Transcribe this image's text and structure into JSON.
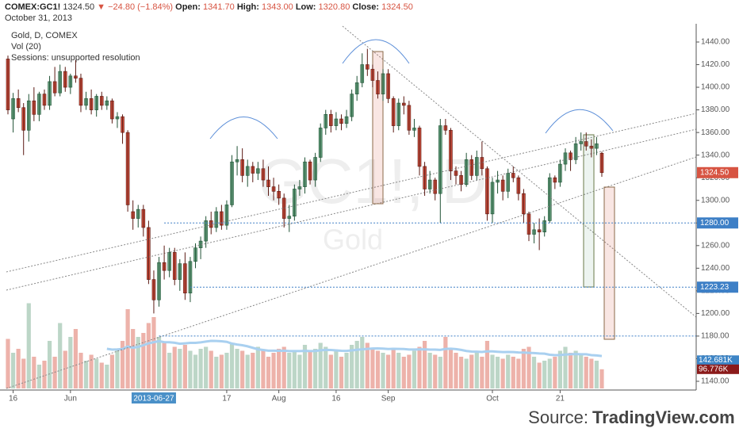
{
  "header": {
    "symbol": "COMEX:GC1!",
    "price": {
      "value": 1324.5,
      "label": "1324.50"
    },
    "arrow": "▼",
    "change": "−24.80 (−1.84%)",
    "fields": [
      {
        "name": "Open:",
        "value": {
          "value": 1341.7,
          "label": "1341.70"
        }
      },
      {
        "name": "High:",
        "value": {
          "value": 1343,
          "label": "1343.00"
        }
      },
      {
        "name": "Low:",
        "value": {
          "value": 1320.8,
          "label": "1320.80"
        }
      },
      {
        "name": "Close:",
        "value": {
          "value": 1324.5,
          "label": "1324.50"
        }
      }
    ],
    "date": "October 31, 2013"
  },
  "chart_data": {
    "type": "candlestick",
    "title": "Gold, D, COMEX",
    "indicator": "Vol (20)",
    "note": "Sessions: unsupported resolution",
    "watermark": "GC1!, D",
    "watermark_sub": "Gold",
    "up_color": "#6ba583",
    "down_color": "#d75442",
    "ma_color": "#a9d0f0",
    "ohlc": [
      [
        1425,
        1428,
        1376,
        1380
      ],
      [
        1372,
        1395,
        1360,
        1390
      ],
      [
        1390,
        1398,
        1378,
        1382
      ],
      [
        1382,
        1386,
        1340,
        1362
      ],
      [
        1362,
        1394,
        1352,
        1388
      ],
      [
        1388,
        1400,
        1370,
        1376
      ],
      [
        1376,
        1396,
        1370,
        1394
      ],
      [
        1394,
        1398,
        1380,
        1384
      ],
      [
        1384,
        1410,
        1380,
        1405
      ],
      [
        1405,
        1418,
        1392,
        1395
      ],
      [
        1395,
        1420,
        1392,
        1414
      ],
      [
        1414,
        1418,
        1396,
        1400
      ],
      [
        1400,
        1412,
        1394,
        1410
      ],
      [
        1410,
        1424,
        1404,
        1408
      ],
      [
        1408,
        1412,
        1378,
        1384
      ],
      [
        1384,
        1396,
        1380,
        1390
      ],
      [
        1390,
        1398,
        1376,
        1380
      ],
      [
        1380,
        1394,
        1374,
        1392
      ],
      [
        1392,
        1396,
        1380,
        1384
      ],
      [
        1384,
        1392,
        1380,
        1388
      ],
      [
        1388,
        1390,
        1368,
        1372
      ],
      [
        1372,
        1378,
        1364,
        1374
      ],
      [
        1374,
        1376,
        1350,
        1360
      ],
      [
        1360,
        1362,
        1290,
        1296
      ],
      [
        1290,
        1300,
        1274,
        1284
      ],
      [
        1284,
        1296,
        1276,
        1292
      ],
      [
        1292,
        1296,
        1268,
        1276
      ],
      [
        1276,
        1282,
        1226,
        1230
      ],
      [
        1230,
        1238,
        1200,
        1212
      ],
      [
        1212,
        1250,
        1206,
        1245
      ],
      [
        1245,
        1260,
        1230,
        1238
      ],
      [
        1238,
        1258,
        1232,
        1254
      ],
      [
        1254,
        1258,
        1225,
        1230
      ],
      [
        1230,
        1248,
        1220,
        1244
      ],
      [
        1244,
        1254,
        1212,
        1218
      ],
      [
        1218,
        1250,
        1210,
        1246
      ],
      [
        1246,
        1262,
        1240,
        1258
      ],
      [
        1258,
        1268,
        1248,
        1264
      ],
      [
        1264,
        1286,
        1258,
        1282
      ],
      [
        1282,
        1290,
        1270,
        1276
      ],
      [
        1276,
        1294,
        1272,
        1290
      ],
      [
        1290,
        1296,
        1274,
        1278
      ],
      [
        1278,
        1300,
        1274,
        1296
      ],
      [
        1296,
        1340,
        1294,
        1334
      ],
      [
        1334,
        1348,
        1322,
        1336
      ],
      [
        1336,
        1346,
        1316,
        1322
      ],
      [
        1322,
        1336,
        1312,
        1330
      ],
      [
        1330,
        1334,
        1316,
        1324
      ],
      [
        1324,
        1334,
        1318,
        1328
      ],
      [
        1328,
        1336,
        1312,
        1318
      ],
      [
        1318,
        1330,
        1304,
        1312
      ],
      [
        1312,
        1320,
        1300,
        1308
      ],
      [
        1308,
        1314,
        1296,
        1302
      ],
      [
        1302,
        1306,
        1276,
        1284
      ],
      [
        1284,
        1296,
        1272,
        1286
      ],
      [
        1286,
        1314,
        1282,
        1310
      ],
      [
        1310,
        1318,
        1304,
        1312
      ],
      [
        1312,
        1338,
        1306,
        1334
      ],
      [
        1334,
        1336,
        1314,
        1318
      ],
      [
        1318,
        1342,
        1312,
        1338
      ],
      [
        1338,
        1368,
        1334,
        1364
      ],
      [
        1364,
        1380,
        1358,
        1376
      ],
      [
        1376,
        1380,
        1360,
        1366
      ],
      [
        1366,
        1378,
        1362,
        1372
      ],
      [
        1372,
        1376,
        1362,
        1368
      ],
      [
        1368,
        1380,
        1364,
        1374
      ],
      [
        1374,
        1398,
        1370,
        1394
      ],
      [
        1394,
        1410,
        1388,
        1404
      ],
      [
        1404,
        1430,
        1400,
        1420
      ],
      [
        1420,
        1434,
        1410,
        1416
      ],
      [
        1416,
        1420,
        1400,
        1406
      ],
      [
        1406,
        1414,
        1390,
        1394
      ],
      [
        1394,
        1416,
        1388,
        1412
      ],
      [
        1412,
        1416,
        1386,
        1390
      ],
      [
        1390,
        1392,
        1360,
        1366
      ],
      [
        1366,
        1390,
        1362,
        1386
      ],
      [
        1386,
        1392,
        1376,
        1384
      ],
      [
        1384,
        1388,
        1358,
        1362
      ],
      [
        1362,
        1372,
        1356,
        1364
      ],
      [
        1364,
        1366,
        1322,
        1330
      ],
      [
        1330,
        1334,
        1304,
        1310
      ],
      [
        1310,
        1326,
        1306,
        1318
      ],
      [
        1318,
        1320,
        1300,
        1306
      ],
      [
        1306,
        1372,
        1280,
        1366
      ],
      [
        1366,
        1372,
        1358,
        1362
      ],
      [
        1362,
        1364,
        1318,
        1326
      ],
      [
        1326,
        1330,
        1314,
        1322
      ],
      [
        1322,
        1326,
        1308,
        1314
      ],
      [
        1314,
        1342,
        1312,
        1336
      ],
      [
        1336,
        1340,
        1318,
        1322
      ],
      [
        1322,
        1344,
        1318,
        1338
      ],
      [
        1338,
        1352,
        1322,
        1328
      ],
      [
        1328,
        1330,
        1282,
        1288
      ],
      [
        1288,
        1320,
        1280,
        1316
      ],
      [
        1316,
        1326,
        1306,
        1318
      ],
      [
        1318,
        1322,
        1300,
        1308
      ],
      [
        1308,
        1328,
        1302,
        1324
      ],
      [
        1324,
        1330,
        1316,
        1320
      ],
      [
        1320,
        1322,
        1300,
        1306
      ],
      [
        1306,
        1310,
        1280,
        1288
      ],
      [
        1288,
        1290,
        1264,
        1270
      ],
      [
        1270,
        1280,
        1262,
        1274
      ],
      [
        1274,
        1284,
        1256,
        1272
      ],
      [
        1272,
        1286,
        1268,
        1282
      ],
      [
        1282,
        1324,
        1280,
        1320
      ],
      [
        1320,
        1322,
        1310,
        1316
      ],
      [
        1316,
        1336,
        1312,
        1332
      ],
      [
        1332,
        1346,
        1326,
        1342
      ],
      [
        1342,
        1344,
        1326,
        1336
      ],
      [
        1336,
        1356,
        1332,
        1350
      ],
      [
        1350,
        1360,
        1344,
        1352
      ],
      [
        1352,
        1360,
        1344,
        1348
      ],
      [
        1348,
        1354,
        1338,
        1346
      ],
      [
        1346,
        1356,
        1340,
        1350
      ],
      [
        1341.7,
        1343,
        1320.8,
        1324.5
      ]
    ],
    "volume": [
      250000,
      180000,
      200000,
      150000,
      430000,
      160000,
      120000,
      140000,
      240000,
      160000,
      330000,
      190000,
      260000,
      300000,
      180000,
      140000,
      170000,
      150000,
      130000,
      120000,
      170000,
      200000,
      240000,
      400000,
      300000,
      260000,
      280000,
      330000,
      360000,
      260000,
      230000,
      180000,
      210000,
      200000,
      220000,
      190000,
      170000,
      200000,
      210000,
      190000,
      160000,
      170000,
      180000,
      230000,
      200000,
      190000,
      170000,
      180000,
      210000,
      190000,
      160000,
      180000,
      200000,
      210000,
      180000,
      190000,
      170000,
      220000,
      190000,
      200000,
      230000,
      210000,
      170000,
      190000,
      160000,
      180000,
      220000,
      240000,
      260000,
      230000,
      200000,
      190000,
      180000,
      170000,
      200000,
      180000,
      160000,
      170000,
      190000,
      210000,
      240000,
      180000,
      170000,
      160000,
      260000,
      200000,
      180000,
      160000,
      150000,
      170000,
      190000,
      160000,
      240000,
      170000,
      160000,
      150000,
      170000,
      160000,
      150000,
      200000,
      210000,
      160000,
      130000,
      140000,
      150000,
      160000,
      190000,
      210000,
      180000,
      190000,
      170000,
      160000,
      150000,
      140000,
      96776
    ],
    "ylim": [
      1140,
      1440
    ],
    "yticks": [
      {
        "value": 1140,
        "label": "1140.00"
      },
      {
        "value": 1160,
        "label": "1160.00"
      },
      {
        "value": 1180,
        "label": "1180.00"
      },
      {
        "value": 1200,
        "label": "1200.00"
      },
      {
        "value": 1220,
        "label": "1220.00"
      },
      {
        "value": 1240,
        "label": "1240.00"
      },
      {
        "value": 1260,
        "label": "1260.00"
      },
      {
        "value": 1280,
        "label": "1280.00"
      },
      {
        "value": 1300,
        "label": "1300.00"
      },
      {
        "value": 1320,
        "label": "1320.00"
      },
      {
        "value": 1340,
        "label": "1340.00"
      },
      {
        "value": 1360,
        "label": "1360.00"
      },
      {
        "value": 1380,
        "label": "1380.00"
      },
      {
        "value": 1400,
        "label": "1400.00"
      },
      {
        "value": 1420,
        "label": "1420.00"
      },
      {
        "value": 1440,
        "label": "1440.00"
      }
    ],
    "xticks": [
      {
        "value": 1,
        "label": "16"
      },
      {
        "value": 12,
        "label": "Jun"
      },
      {
        "value": 42,
        "label": "17"
      },
      {
        "value": 52,
        "label": "Aug"
      },
      {
        "value": 63,
        "label": "16"
      },
      {
        "value": 73,
        "label": "Sep"
      },
      {
        "value": 93,
        "label": "Oct"
      },
      {
        "value": 106,
        "label": "21"
      }
    ],
    "x_cursor": {
      "value": 28,
      "label": "2013-06-27"
    },
    "hlines": [
      {
        "value": 1280,
        "label": "1280.00",
        "color": "#3d7fc6"
      },
      {
        "value": 1223.23,
        "label": "1223.23",
        "color": "#3d7fc6"
      },
      {
        "value": 1180,
        "color": "#3d7fc6"
      }
    ],
    "price_label": {
      "value": 1324.5,
      "label": "1324.50",
      "color": "#d75442"
    },
    "volume_labels": [
      {
        "value": 142681,
        "label": "142.681K",
        "color": "#3d85c6"
      },
      {
        "value": 96776,
        "label": "96.776K",
        "color": "#8b1a1a"
      }
    ],
    "source": "Source:",
    "source_site": "TradingView.com"
  }
}
